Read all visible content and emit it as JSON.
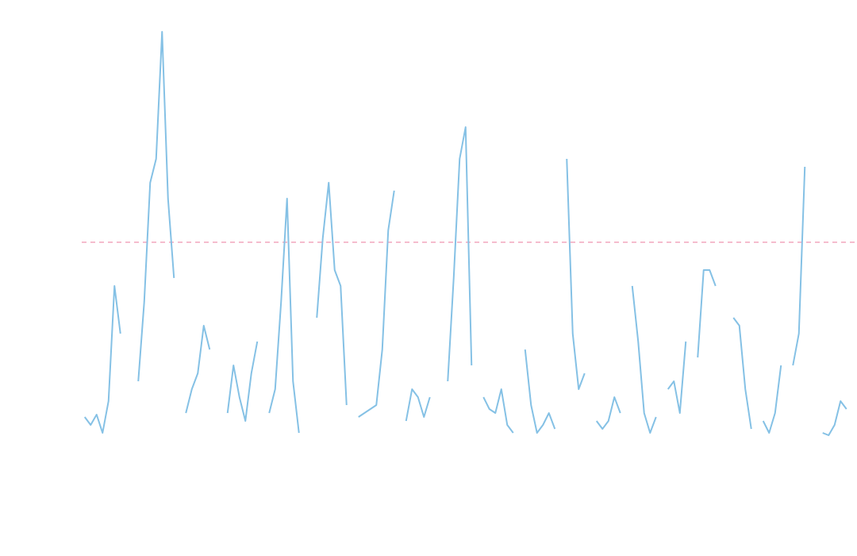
{
  "chart_data": {
    "type": "line",
    "x": [
      0,
      1,
      2,
      3,
      4,
      5,
      6,
      7,
      8,
      9,
      10,
      11,
      12,
      13,
      14,
      15,
      16,
      17,
      18,
      19,
      20,
      21,
      22,
      23,
      24,
      25,
      26,
      27,
      28,
      29,
      30,
      31,
      32,
      33,
      34,
      35,
      36,
      37,
      38,
      39,
      40,
      41,
      42,
      43,
      44,
      45,
      46,
      47,
      48,
      49,
      50,
      51,
      52,
      53,
      54,
      55,
      56,
      57,
      58,
      59,
      60,
      61,
      62,
      63,
      64,
      65,
      66,
      67,
      68,
      69,
      70,
      71,
      72,
      73,
      74,
      75,
      76,
      77,
      78,
      79,
      80,
      81,
      82,
      83,
      84,
      85,
      86,
      87,
      88,
      89,
      90,
      91,
      92,
      93,
      94,
      95,
      96,
      97,
      98,
      99,
      100,
      101,
      102,
      103,
      104,
      105,
      106,
      107,
      108,
      109,
      110,
      111,
      112,
      113,
      114,
      115,
      116,
      117,
      118,
      119,
      120,
      121,
      122,
      123,
      124,
      125,
      126,
      127,
      128
    ],
    "series": [
      {
        "color": "#85c1e5",
        "values": [
          5,
          3,
          5.6,
          1,
          9,
          38,
          26,
          null,
          null,
          14,
          34,
          64,
          70,
          102,
          60,
          40,
          null,
          6,
          12,
          16,
          28,
          22,
          null,
          null,
          6,
          18,
          10,
          4,
          16,
          24,
          null,
          6,
          12,
          34,
          60,
          14,
          1,
          null,
          null,
          30,
          50,
          64,
          42,
          38,
          8,
          null,
          5,
          6,
          7,
          8,
          22,
          52,
          62,
          null,
          4,
          12,
          10,
          5,
          10,
          null,
          null,
          14,
          40,
          70,
          78,
          18,
          null,
          10,
          7,
          6,
          12,
          3,
          1,
          null,
          22,
          8,
          1,
          3,
          6,
          2,
          null,
          70,
          26,
          12,
          16,
          null,
          4,
          2,
          4,
          10,
          6,
          null,
          38,
          24,
          6,
          1,
          5,
          null,
          12,
          14,
          6,
          24,
          null,
          20,
          42,
          42,
          38,
          null,
          null,
          30,
          28,
          12,
          2,
          null,
          4,
          1,
          6,
          18,
          null,
          18,
          26,
          68,
          null,
          null,
          1,
          0.4,
          3,
          9,
          7
        ]
      }
    ],
    "xlim": [
      -0.5,
      129.5
    ],
    "ylim": [
      0,
      105
    ],
    "reference_line": {
      "value": 49,
      "color": "#f2a6bd",
      "dashed": true
    }
  }
}
